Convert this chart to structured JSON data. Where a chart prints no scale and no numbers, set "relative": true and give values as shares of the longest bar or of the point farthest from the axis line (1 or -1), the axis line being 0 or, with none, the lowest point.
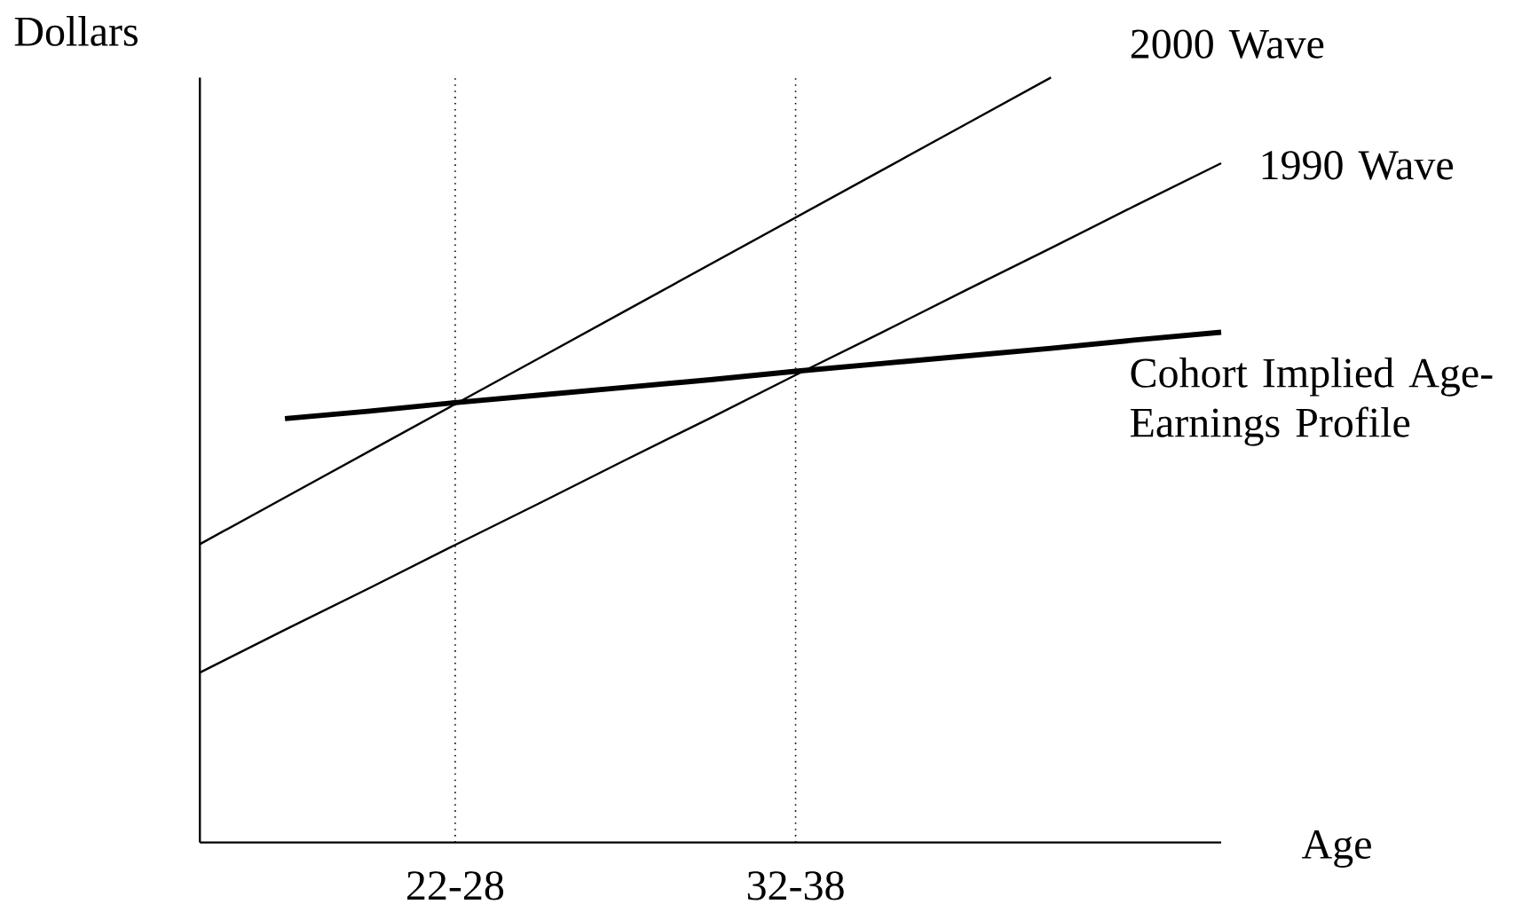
{
  "chart_data": {
    "type": "line",
    "relative": true,
    "xlabel": "Age",
    "ylabel": "Dollars",
    "categories": [
      null,
      null,
      null,
      "22-28",
      null,
      null,
      null,
      "32-38",
      null,
      null,
      null,
      null,
      null
    ],
    "series": [
      {
        "name": "2000 Wave",
        "color": "#000000",
        "values": [
          0.39,
          0.451,
          0.512,
          0.573,
          0.634,
          0.695,
          0.756,
          0.817,
          0.878,
          0.939,
          1,
          null,
          null
        ]
      },
      {
        "name": "1990 Wave",
        "color": "#000000",
        "values": [
          0.222,
          0.278,
          0.333,
          0.389,
          0.444,
          0.5,
          0.555,
          0.611,
          0.666,
          0.722,
          0.777,
          0.833,
          0.888
        ]
      },
      {
        "name": "Cohort Implied Age-Earnings Profile",
        "color": "#000000",
        "values": [
          null,
          0.554,
          0.564,
          0.575,
          0.585,
          0.595,
          0.605,
          0.616,
          0.626,
          0.636,
          0.646,
          0.657,
          0.667
        ]
      }
    ],
    "ref_lines": [
      {
        "axis": "x",
        "value": "22-28",
        "line_style": "dotted",
        "color": "#000000"
      },
      {
        "axis": "x",
        "value": "32-38",
        "line_style": "dotted",
        "color": "#000000"
      }
    ],
    "marker": "none",
    "line_style": "solid"
  }
}
